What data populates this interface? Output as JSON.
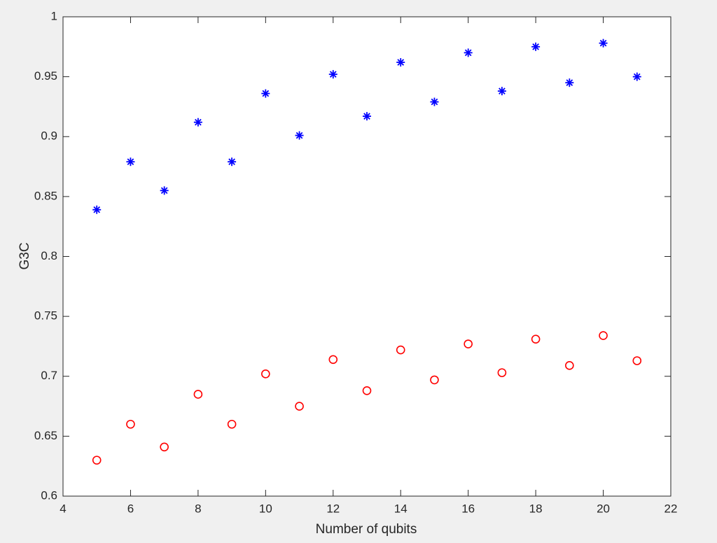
{
  "chart_data": {
    "type": "scatter",
    "xlabel": "Number of qubits",
    "ylabel": "G3C",
    "xlim": [
      4,
      22
    ],
    "ylim": [
      0.6,
      1
    ],
    "xticks": [
      4,
      6,
      8,
      10,
      12,
      14,
      16,
      18,
      20,
      22
    ],
    "yticks": [
      0.6,
      0.65,
      0.7,
      0.75,
      0.8,
      0.85,
      0.9,
      0.95,
      1
    ],
    "grid": false,
    "series": [
      {
        "color": "#0000ff",
        "marker": "star",
        "x": [
          5,
          6,
          7,
          8,
          9,
          10,
          11,
          12,
          13,
          14,
          15,
          16,
          17,
          18,
          19,
          20,
          21
        ],
        "values": [
          0.839,
          0.879,
          0.855,
          0.912,
          0.879,
          0.936,
          0.901,
          0.952,
          0.917,
          0.962,
          0.929,
          0.97,
          0.938,
          0.975,
          0.945,
          0.978,
          0.95
        ]
      },
      {
        "color": "#ff0000",
        "marker": "circle",
        "x": [
          5,
          6,
          7,
          8,
          9,
          10,
          11,
          12,
          13,
          14,
          15,
          16,
          17,
          18,
          19,
          20,
          21
        ],
        "values": [
          0.63,
          0.66,
          0.641,
          0.685,
          0.66,
          0.702,
          0.675,
          0.714,
          0.688,
          0.722,
          0.697,
          0.727,
          0.703,
          0.731,
          0.709,
          0.734,
          0.713
        ]
      }
    ]
  }
}
